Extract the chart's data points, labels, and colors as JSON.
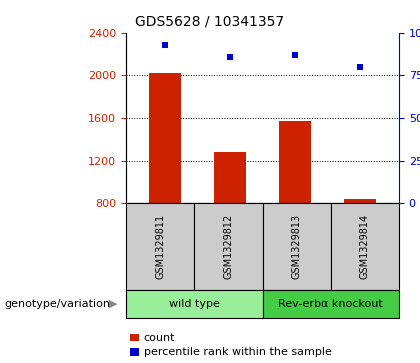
{
  "title": "GDS5628 / 10341357",
  "categories": [
    "GSM1329811",
    "GSM1329812",
    "GSM1329813",
    "GSM1329814"
  ],
  "bar_values": [
    2020,
    1280,
    1570,
    840
  ],
  "percentile_values": [
    93,
    86,
    87,
    80
  ],
  "bar_color": "#cc2200",
  "scatter_color": "#0000cc",
  "ylim_left": [
    800,
    2400
  ],
  "ylim_right": [
    0,
    100
  ],
  "yticks_left": [
    800,
    1200,
    1600,
    2000,
    2400
  ],
  "yticks_right": [
    0,
    25,
    50,
    75,
    100
  ],
  "groups": [
    {
      "label": "wild type",
      "indices": [
        0,
        1
      ],
      "color": "#99ee99"
    },
    {
      "label": "Rev-erbα knockout",
      "indices": [
        2,
        3
      ],
      "color": "#44cc44"
    }
  ],
  "group_row_label": "genotype/variation",
  "legend_count_label": "count",
  "legend_percentile_label": "percentile rank within the sample",
  "bar_width": 0.5,
  "title_fontsize": 10,
  "tick_fontsize": 8,
  "label_fontsize": 8,
  "group_label_fontsize": 8,
  "axis_label_color_left": "#cc2200",
  "axis_label_color_right": "#0000cc",
  "grid_color": "#000000",
  "plot_bg_color": "#ffffff",
  "sample_box_color": "#cccccc",
  "arrow_color": "#888888"
}
